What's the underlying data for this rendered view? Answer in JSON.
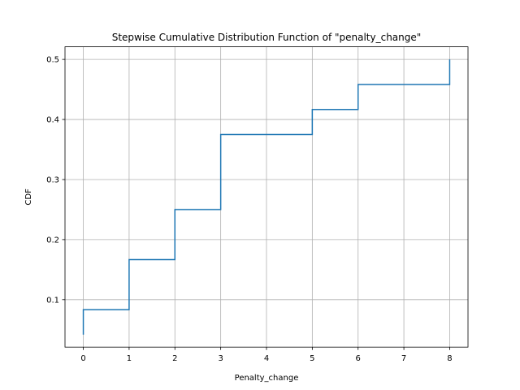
{
  "chart_data": {
    "type": "line",
    "subtype": "step",
    "title": "Stepwise Cumulative Distribution Function of \"penalty_change\"",
    "xlabel": "Penalty_change",
    "ylabel": "CDF",
    "xlim": [
      -0.4,
      8.4
    ],
    "ylim": [
      0.021,
      0.521
    ],
    "xticks": [
      0,
      1,
      2,
      3,
      4,
      5,
      6,
      7,
      8
    ],
    "yticks": [
      0.1,
      0.2,
      0.3,
      0.4,
      0.5
    ],
    "xtick_labels": [
      "0",
      "1",
      "2",
      "3",
      "4",
      "5",
      "6",
      "7",
      "8"
    ],
    "ytick_labels": [
      "0.1",
      "0.2",
      "0.3",
      "0.4",
      "0.5"
    ],
    "grid": true,
    "series_color": "#1f77b4",
    "points": [
      {
        "x": 0,
        "y": 0.0417
      },
      {
        "x": 0,
        "y": 0.0833
      },
      {
        "x": 1,
        "y": 0.0833
      },
      {
        "x": 1,
        "y": 0.1667
      },
      {
        "x": 2,
        "y": 0.1667
      },
      {
        "x": 2,
        "y": 0.25
      },
      {
        "x": 3,
        "y": 0.25
      },
      {
        "x": 3,
        "y": 0.375
      },
      {
        "x": 5,
        "y": 0.375
      },
      {
        "x": 5,
        "y": 0.4167
      },
      {
        "x": 6,
        "y": 0.4167
      },
      {
        "x": 6,
        "y": 0.4583
      },
      {
        "x": 8,
        "y": 0.4583
      },
      {
        "x": 8,
        "y": 0.5
      }
    ]
  }
}
